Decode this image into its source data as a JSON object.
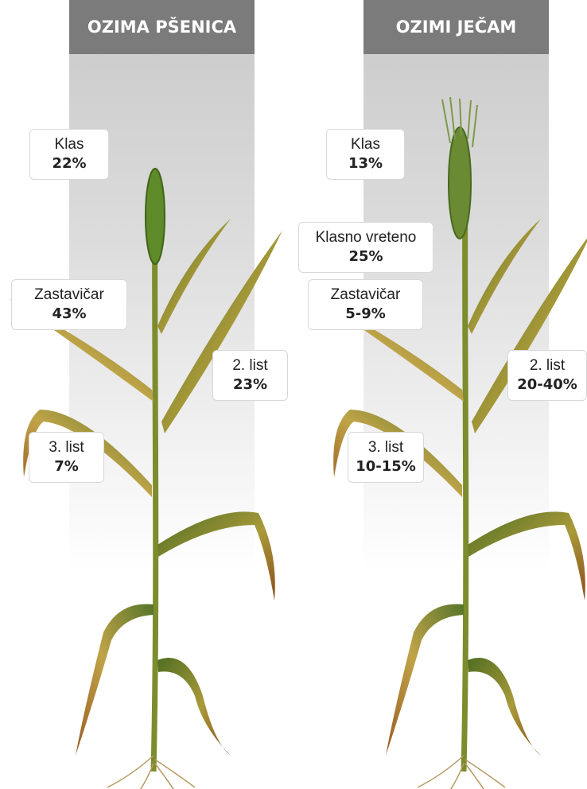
{
  "panels": [
    {
      "title": "OZIMA PŠENICA",
      "labels": [
        {
          "name": "Klas",
          "value": "22%"
        },
        {
          "name": "Zastavičar",
          "value": "43%"
        },
        {
          "name": "2. list",
          "value": "23%"
        },
        {
          "name": "3. list",
          "value": "7%"
        }
      ]
    },
    {
      "title": "OZIMI JEČAM",
      "labels": [
        {
          "name": "Klas",
          "value": "13%"
        },
        {
          "name": "Klasno vreteno",
          "value": "25%"
        },
        {
          "name": "Zastavičar",
          "value": "5-9%"
        },
        {
          "name": "2. list",
          "value": "20-40%"
        },
        {
          "name": "3. list",
          "value": "10-15%"
        }
      ]
    }
  ]
}
